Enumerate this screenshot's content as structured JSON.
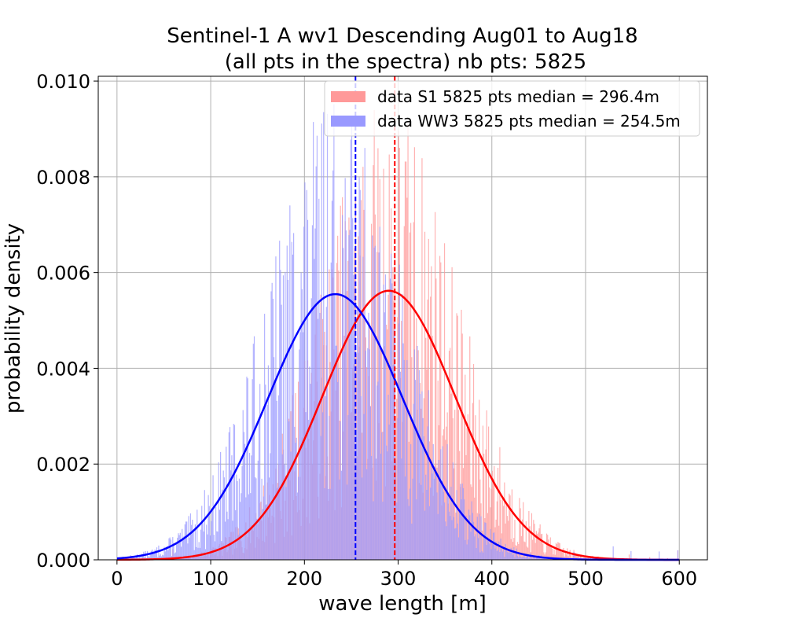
{
  "chart_data": {
    "type": "histogram",
    "title_line1": "Sentinel-1 A wv1 Descending Aug01 to Aug18",
    "title_line2": "(all pts in the spectra) nb pts: 5825",
    "xlabel": "wave length [m]",
    "ylabel": "probability density",
    "xlim": [
      -20,
      630
    ],
    "ylim": [
      0,
      0.0101
    ],
    "xticks": [
      0,
      100,
      200,
      300,
      400,
      500,
      600
    ],
    "xtick_labels": [
      "0",
      "100",
      "200",
      "300",
      "400",
      "500",
      "600"
    ],
    "yticks": [
      0,
      0.002,
      0.004,
      0.006,
      0.008,
      0.01
    ],
    "ytick_labels": [
      "0.000",
      "0.002",
      "0.004",
      "0.006",
      "0.008",
      "0.010"
    ],
    "grid": true,
    "legend_position": "top-right",
    "bin_width": 1,
    "series": [
      {
        "name": "data S1 5825 pts median = 296.4m",
        "color": "#ff9999",
        "median": 296.4,
        "fit_color": "#ff0000",
        "fit_mean": 290,
        "fit_peak": 0.00562,
        "fit_sigma": 71
      },
      {
        "name": "data WW3 5825 pts median = 254.5m",
        "color": "#9999ff",
        "median": 254.5,
        "fit_color": "#0000ff",
        "fit_mean": 233,
        "fit_peak": 0.00555,
        "fit_sigma": 72
      }
    ]
  }
}
